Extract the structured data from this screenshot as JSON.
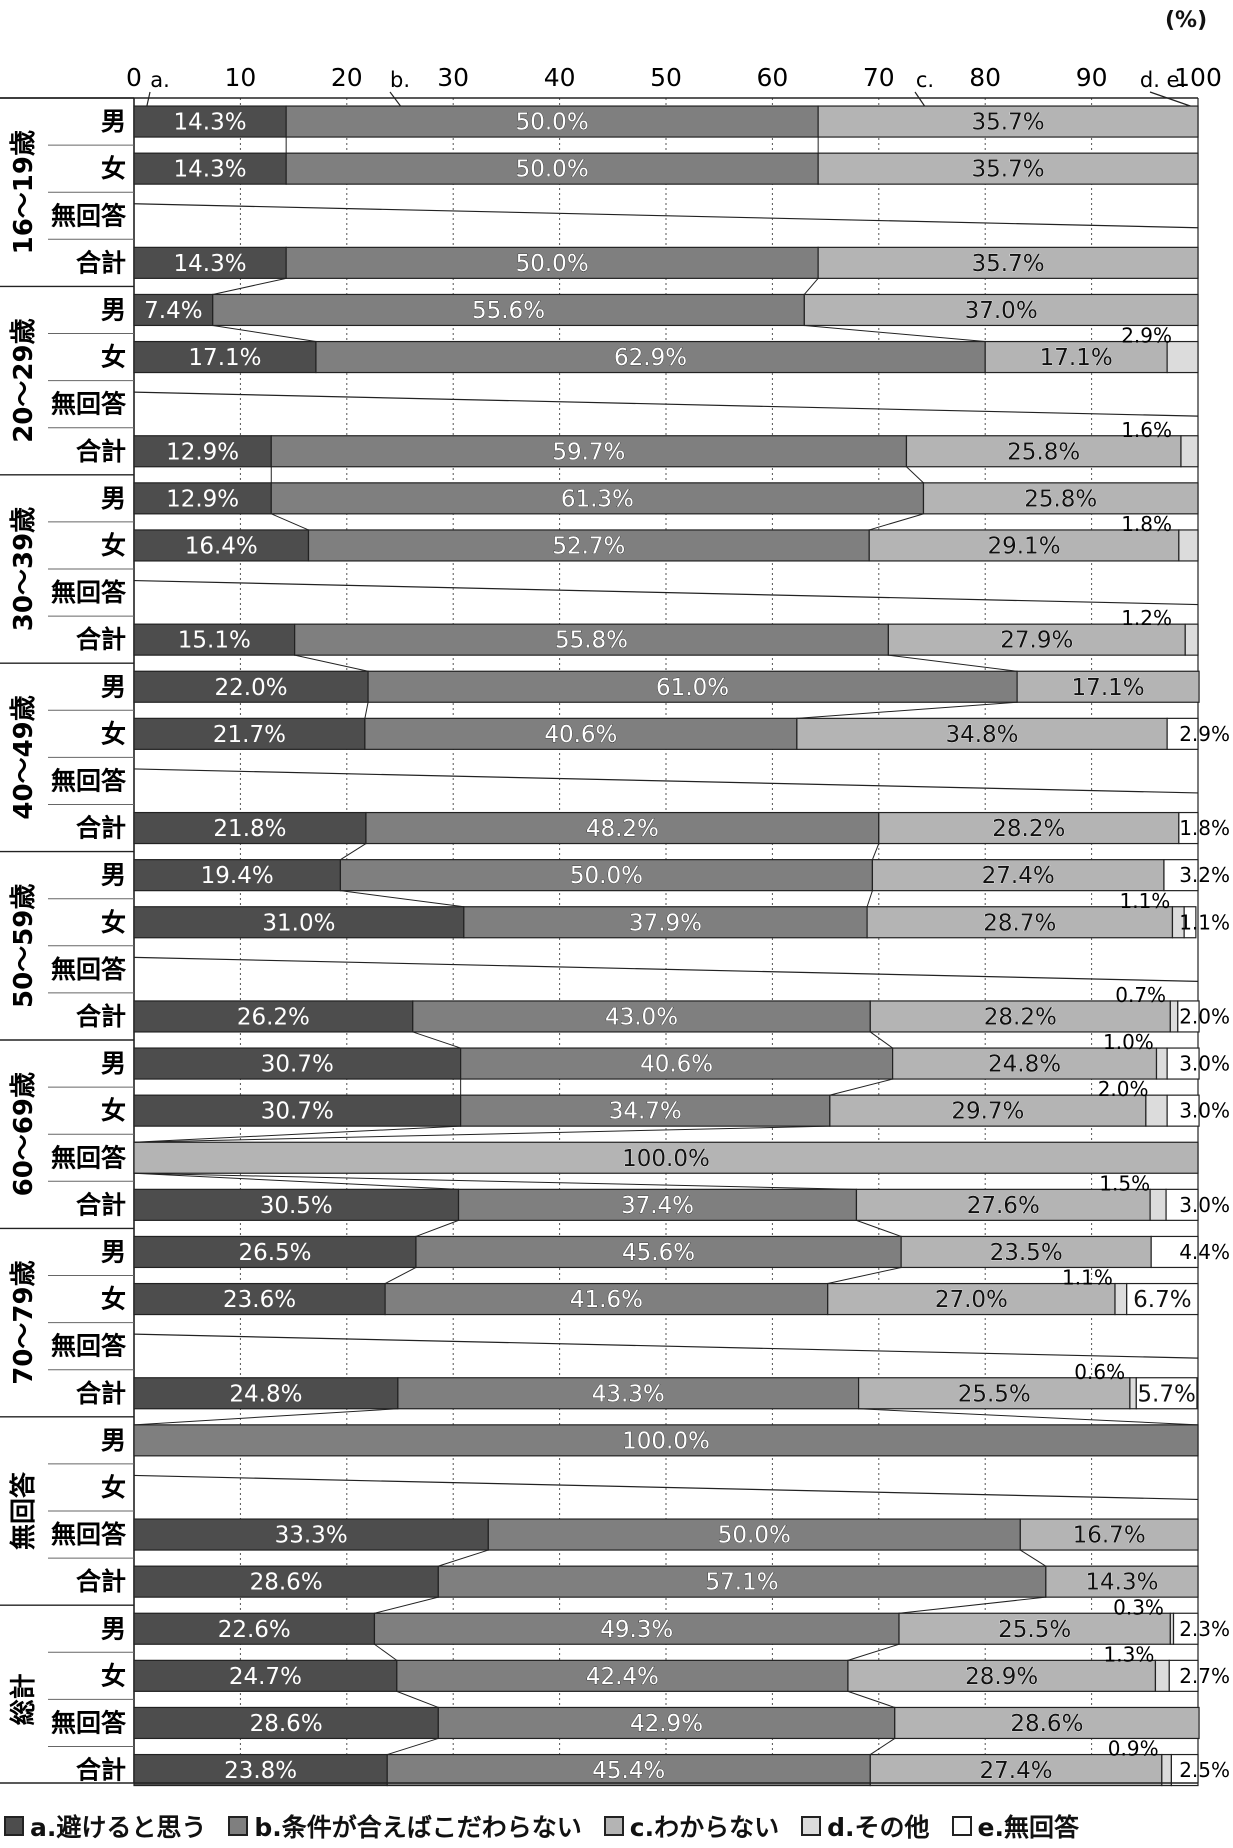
{
  "chart_data": {
    "type": "bar",
    "orientation": "horizontal",
    "stacked": "percent",
    "title": "",
    "unit_label": "(%)",
    "xlim": [
      0,
      100
    ],
    "x_ticks": [
      "0",
      "10",
      "20",
      "30",
      "40",
      "50",
      "60",
      "70",
      "80",
      "90",
      "100"
    ],
    "axis_series_markers": [
      "a.",
      "b.",
      "c.",
      "d. e."
    ],
    "series": [
      {
        "key": "a",
        "name": "a.避けると思う",
        "color": "#4d4d4d"
      },
      {
        "key": "b",
        "name": "b.条件が合えばこだわらない",
        "color": "#7f7f7f"
      },
      {
        "key": "c",
        "name": "c.わからない",
        "color": "#b4b4b4"
      },
      {
        "key": "d",
        "name": "d.その他",
        "color": "#dcdcdc"
      },
      {
        "key": "e",
        "name": "e.無回答",
        "color": "#ffffff"
      }
    ],
    "groups": [
      {
        "label": "16～19歳",
        "rows": [
          {
            "label": "男",
            "values": [
              14.3,
              50.0,
              35.7,
              0,
              0
            ],
            "labels": [
              "14.3%",
              "50.0%",
              "35.7%",
              "",
              ""
            ]
          },
          {
            "label": "女",
            "values": [
              14.3,
              50.0,
              35.7,
              0,
              0
            ],
            "labels": [
              "14.3%",
              "50.0%",
              "35.7%",
              "",
              ""
            ]
          },
          {
            "label": "無回答",
            "values": [
              0,
              0,
              0,
              0,
              0
            ],
            "labels": [
              "",
              "",
              "",
              "",
              ""
            ]
          },
          {
            "label": "合計",
            "values": [
              14.3,
              50.0,
              35.7,
              0,
              0
            ],
            "labels": [
              "14.3%",
              "50.0%",
              "35.7%",
              "",
              ""
            ]
          }
        ]
      },
      {
        "label": "20～29歳",
        "rows": [
          {
            "label": "男",
            "values": [
              7.4,
              55.6,
              37.0,
              0,
              0
            ],
            "labels": [
              "7.4%",
              "55.6%",
              "37.0%",
              "",
              ""
            ]
          },
          {
            "label": "女",
            "values": [
              17.1,
              62.9,
              17.1,
              2.9,
              0
            ],
            "labels": [
              "17.1%",
              "62.9%",
              "17.1%",
              "2.9%",
              ""
            ]
          },
          {
            "label": "無回答",
            "values": [
              0,
              0,
              0,
              0,
              0
            ],
            "labels": [
              "",
              "",
              "",
              "",
              ""
            ]
          },
          {
            "label": "合計",
            "values": [
              12.9,
              59.7,
              25.8,
              1.6,
              0
            ],
            "labels": [
              "12.9%",
              "59.7%",
              "25.8%",
              "1.6%",
              ""
            ]
          }
        ]
      },
      {
        "label": "30～39歳",
        "rows": [
          {
            "label": "男",
            "values": [
              12.9,
              61.3,
              25.8,
              0,
              0
            ],
            "labels": [
              "12.9%",
              "61.3%",
              "25.8%",
              "",
              ""
            ]
          },
          {
            "label": "女",
            "values": [
              16.4,
              52.7,
              29.1,
              1.8,
              0
            ],
            "labels": [
              "16.4%",
              "52.7%",
              "29.1%",
              "1.8%",
              ""
            ]
          },
          {
            "label": "無回答",
            "values": [
              0,
              0,
              0,
              0,
              0
            ],
            "labels": [
              "",
              "",
              "",
              "",
              ""
            ]
          },
          {
            "label": "合計",
            "values": [
              15.1,
              55.8,
              27.9,
              1.2,
              0
            ],
            "labels": [
              "15.1%",
              "55.8%",
              "27.9%",
              "1.2%",
              ""
            ]
          }
        ]
      },
      {
        "label": "40～49歳",
        "rows": [
          {
            "label": "男",
            "values": [
              22.0,
              61.0,
              17.1,
              0,
              0
            ],
            "labels": [
              "22.0%",
              "61.0%",
              "17.1%",
              "",
              ""
            ]
          },
          {
            "label": "女",
            "values": [
              21.7,
              40.6,
              34.8,
              0,
              2.9
            ],
            "labels": [
              "21.7%",
              "40.6%",
              "34.8%",
              "",
              "2.9%"
            ]
          },
          {
            "label": "無回答",
            "values": [
              0,
              0,
              0,
              0,
              0
            ],
            "labels": [
              "",
              "",
              "",
              "",
              ""
            ]
          },
          {
            "label": "合計",
            "values": [
              21.8,
              48.2,
              28.2,
              0,
              1.8
            ],
            "labels": [
              "21.8%",
              "48.2%",
              "28.2%",
              "",
              "1.8%"
            ]
          }
        ]
      },
      {
        "label": "50～59歳",
        "rows": [
          {
            "label": "男",
            "values": [
              19.4,
              50.0,
              27.4,
              0,
              3.2
            ],
            "labels": [
              "19.4%",
              "50.0%",
              "27.4%",
              "",
              "3.2%"
            ]
          },
          {
            "label": "女",
            "values": [
              31.0,
              37.9,
              28.7,
              1.1,
              1.1
            ],
            "labels": [
              "31.0%",
              "37.9%",
              "28.7%",
              "1.1%",
              "1.1%"
            ]
          },
          {
            "label": "無回答",
            "values": [
              0,
              0,
              0,
              0,
              0
            ],
            "labels": [
              "",
              "",
              "",
              "",
              ""
            ]
          },
          {
            "label": "合計",
            "values": [
              26.2,
              43.0,
              28.2,
              0.7,
              2.0
            ],
            "labels": [
              "26.2%",
              "43.0%",
              "28.2%",
              "0.7%",
              "2.0%"
            ]
          }
        ]
      },
      {
        "label": "60～69歳",
        "rows": [
          {
            "label": "男",
            "values": [
              30.7,
              40.6,
              24.8,
              1.0,
              3.0
            ],
            "labels": [
              "30.7%",
              "40.6%",
              "24.8%",
              "1.0%",
              "3.0%"
            ]
          },
          {
            "label": "女",
            "values": [
              30.7,
              34.7,
              29.7,
              2.0,
              3.0
            ],
            "labels": [
              "30.7%",
              "34.7%",
              "29.7%",
              "2.0%",
              "3.0%"
            ]
          },
          {
            "label": "無回答",
            "values": [
              0,
              0,
              100.0,
              0,
              0
            ],
            "labels": [
              "",
              "",
              "100.0%",
              "",
              ""
            ]
          },
          {
            "label": "合計",
            "values": [
              30.5,
              37.4,
              27.6,
              1.5,
              3.0
            ],
            "labels": [
              "30.5%",
              "37.4%",
              "27.6%",
              "1.5%",
              "3.0%"
            ]
          }
        ]
      },
      {
        "label": "70～79歳",
        "rows": [
          {
            "label": "男",
            "values": [
              26.5,
              45.6,
              23.5,
              0,
              4.4
            ],
            "labels": [
              "26.5%",
              "45.6%",
              "23.5%",
              "",
              "4.4%"
            ]
          },
          {
            "label": "女",
            "values": [
              23.6,
              41.6,
              27.0,
              1.1,
              6.7
            ],
            "labels": [
              "23.6%",
              "41.6%",
              "27.0%",
              "1.1%",
              "6.7%"
            ]
          },
          {
            "label": "無回答",
            "values": [
              0,
              0,
              0,
              0,
              0
            ],
            "labels": [
              "",
              "",
              "",
              "",
              ""
            ]
          },
          {
            "label": "合計",
            "values": [
              24.8,
              43.3,
              25.5,
              0.6,
              5.7
            ],
            "labels": [
              "24.8%",
              "43.3%",
              "25.5%",
              "0.6%",
              "5.7%"
            ]
          }
        ]
      },
      {
        "label": "無回答",
        "rows": [
          {
            "label": "男",
            "values": [
              0,
              100.0,
              0,
              0,
              0
            ],
            "labels": [
              "",
              "100.0%",
              "",
              "",
              ""
            ]
          },
          {
            "label": "女",
            "values": [
              0,
              0,
              0,
              0,
              0
            ],
            "labels": [
              "",
              "",
              "",
              "",
              ""
            ]
          },
          {
            "label": "無回答",
            "values": [
              33.3,
              50.0,
              16.7,
              0,
              0
            ],
            "labels": [
              "33.3%",
              "50.0%",
              "16.7%",
              "",
              ""
            ]
          },
          {
            "label": "合計",
            "values": [
              28.6,
              57.1,
              14.3,
              0,
              0
            ],
            "labels": [
              "28.6%",
              "57.1%",
              "14.3%",
              "",
              ""
            ]
          }
        ]
      },
      {
        "label": "総計",
        "rows": [
          {
            "label": "男",
            "values": [
              22.6,
              49.3,
              25.5,
              0.3,
              2.3
            ],
            "labels": [
              "22.6%",
              "49.3%",
              "25.5%",
              "0.3%",
              "2.3%"
            ]
          },
          {
            "label": "女",
            "values": [
              24.7,
              42.4,
              28.9,
              1.3,
              2.7
            ],
            "labels": [
              "24.7%",
              "42.4%",
              "28.9%",
              "1.3%",
              "2.7%"
            ]
          },
          {
            "label": "無回答",
            "values": [
              28.6,
              42.9,
              28.6,
              0,
              0
            ],
            "labels": [
              "28.6%",
              "42.9%",
              "28.6%",
              "",
              ""
            ]
          },
          {
            "label": "合計",
            "values": [
              23.8,
              45.4,
              27.4,
              0.9,
              2.5
            ],
            "labels": [
              "23.8%",
              "45.4%",
              "27.4%",
              "0.9%",
              "2.5%"
            ]
          }
        ]
      }
    ]
  }
}
